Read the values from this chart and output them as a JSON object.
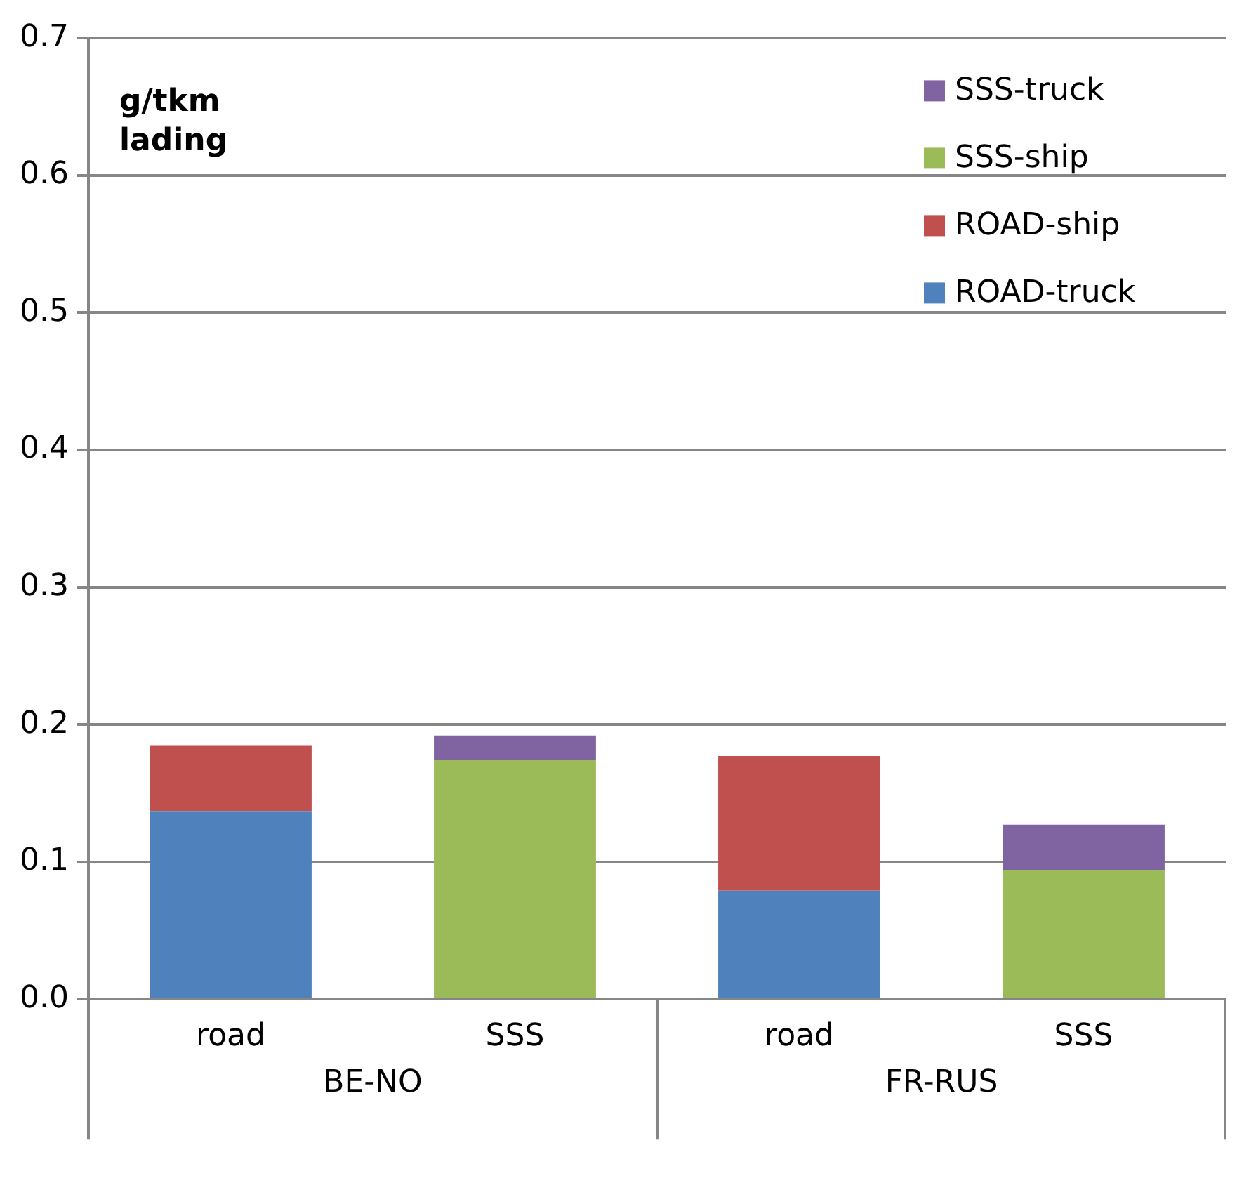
{
  "chart_data": {
    "type": "bar",
    "stacked": true,
    "ylabel": "g/tkm lading",
    "categories": [
      "road",
      "SSS",
      "road",
      "SSS"
    ],
    "annotations": [
      "BE-NO",
      "FR-RUS"
    ],
    "series": [
      {
        "name": "ROAD-truck",
        "color": "#4f81bd",
        "values": [
          0.137,
          null,
          0.079,
          null
        ]
      },
      {
        "name": "ROAD-ship",
        "color": "#c0504d",
        "values": [
          0.048,
          null,
          0.098,
          null
        ]
      },
      {
        "name": "SSS-ship",
        "color": "#9bbb59",
        "values": [
          null,
          0.174,
          null,
          0.094
        ]
      },
      {
        "name": "SSS-truck",
        "color": "#8064a2",
        "values": [
          null,
          0.018,
          null,
          0.033
        ]
      }
    ],
    "ylim": [
      0,
      0.7
    ],
    "yticks": [
      {
        "value": 0,
        "label": "0.0"
      },
      0.1,
      0.2,
      0.3,
      0.4,
      0.5,
      0.6,
      0.7
    ],
    "grid": "y",
    "legend": "top right"
  }
}
